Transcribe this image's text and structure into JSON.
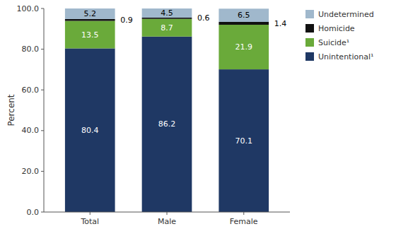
{
  "chart_data": {
    "type": "bar",
    "stacked": true,
    "data_labels": true,
    "grid": false,
    "legend": "right",
    "ylabel": "Percent",
    "categories": [
      "Total",
      "Male",
      "Female"
    ],
    "series": [
      {
        "name": "Unintentional¹",
        "color": "#1f3864",
        "values": [
          80.4,
          86.2,
          70.1
        ]
      },
      {
        "name": "Suicide¹",
        "color": "#6aaa3a",
        "values": [
          13.5,
          8.7,
          21.9
        ]
      },
      {
        "name": "Homicide",
        "color": "#111111",
        "values": [
          0.9,
          0.6,
          1.4
        ]
      },
      {
        "name": "Undetermined",
        "color": "#a0b8cc",
        "values": [
          5.2,
          4.5,
          6.5
        ]
      }
    ],
    "ylim": [
      0,
      100
    ],
    "yticks": [
      {
        "value": 0,
        "label": "0.0"
      },
      {
        "value": 20,
        "label": "20.0"
      },
      {
        "value": 40,
        "label": "40.0"
      },
      {
        "value": 60,
        "label": "60.0"
      },
      {
        "value": 80,
        "label": "80.0"
      },
      {
        "value": 100,
        "label": "100.0"
      }
    ]
  }
}
